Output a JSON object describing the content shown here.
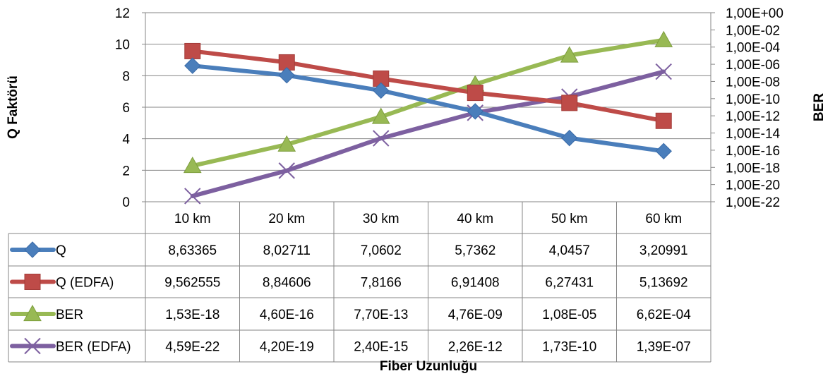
{
  "chart_data": {
    "type": "line",
    "categories": [
      "10 km",
      "20 km",
      "30 km",
      "40 km",
      "50 km",
      "60 km"
    ],
    "xlabel": "Fiber Uzunluğu",
    "ylabel": "Q Faktörü",
    "y2label": "BER",
    "ylim": [
      0,
      12
    ],
    "yticks": [
      "0",
      "2",
      "4",
      "6",
      "8",
      "10",
      "12"
    ],
    "y2scale": "log",
    "y2lim": [
      1e-22,
      1
    ],
    "y2ticks": [
      "1,00E-22",
      "1,00E-20",
      "1,00E-18",
      "1,00E-16",
      "1,00E-14",
      "1,00E-12",
      "1,00E-10",
      "1,00E-08",
      "1,00E-06",
      "1,00E-04",
      "1,00E-02",
      "1,00E+00"
    ],
    "gridlines": true,
    "legend": "data-table",
    "series": [
      {
        "name": "Q",
        "axis": "left",
        "marker": "diamond",
        "color": "#4A7EBB",
        "values": [
          8.63365,
          8.02711,
          7.0602,
          5.7362,
          4.0457,
          3.20991
        ],
        "labels": [
          "8,63365",
          "8,02711",
          "7,0602",
          "5,7362",
          "4,0457",
          "3,20991"
        ]
      },
      {
        "name": "Q (EDFA)",
        "axis": "left",
        "marker": "square",
        "color": "#BE4B48",
        "values": [
          9.562555,
          8.84606,
          7.8166,
          6.91408,
          6.27431,
          5.13692
        ],
        "labels": [
          "9,562555",
          "8,84606",
          "7,8166",
          "6,91408",
          "6,27431",
          "5,13692"
        ]
      },
      {
        "name": "BER",
        "axis": "right",
        "marker": "triangle",
        "color": "#98B954",
        "values": [
          1.53e-18,
          4.6e-16,
          7.7e-13,
          4.76e-09,
          1.08e-05,
          0.000662
        ],
        "labels": [
          "1,53E-18",
          "4,60E-16",
          "7,70E-13",
          "4,76E-09",
          "1,08E-05",
          "6,62E-04"
        ]
      },
      {
        "name": "BER (EDFA)",
        "axis": "right",
        "marker": "x",
        "color": "#7D60A0",
        "values": [
          4.59e-22,
          4.2e-19,
          2.4e-15,
          2.26e-12,
          1.73e-10,
          1.39e-07
        ],
        "labels": [
          "4,59E-22",
          "4,20E-19",
          "2,40E-15",
          "2,26E-12",
          "1,73E-10",
          "1,39E-07"
        ]
      }
    ]
  }
}
